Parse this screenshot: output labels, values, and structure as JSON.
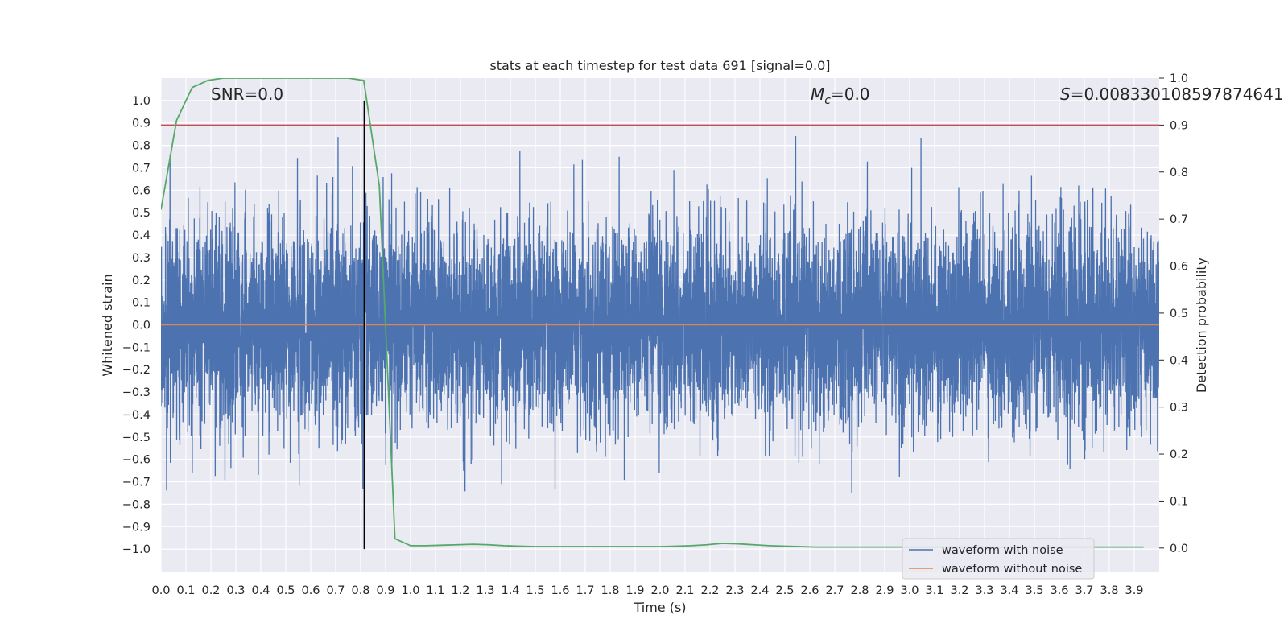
{
  "chart_data": {
    "type": "line",
    "title": "stats at each timestep for test data 691 [signal=0.0]",
    "xlabel": "Time (s)",
    "ylabel": "Whitened strain",
    "ylabel_right": "Detection probability",
    "xlim": [
      0.0,
      4.0
    ],
    "ylim": [
      -1.1,
      1.1
    ],
    "ylim_right": [
      -0.05,
      1.0
    ],
    "grid": true,
    "x_ticks": [
      "0.0",
      "0.1",
      "0.2",
      "0.3",
      "0.4",
      "0.5",
      "0.6",
      "0.7",
      "0.8",
      "0.9",
      "1.0",
      "1.1",
      "1.2",
      "1.3",
      "1.4",
      "1.5",
      "1.6",
      "1.7",
      "1.8",
      "1.9",
      "2.0",
      "2.1",
      "2.2",
      "2.3",
      "2.4",
      "2.5",
      "2.6",
      "2.7",
      "2.8",
      "2.9",
      "3.0",
      "3.1",
      "3.2",
      "3.3",
      "3.4",
      "3.5",
      "3.6",
      "3.7",
      "3.8",
      "3.9"
    ],
    "y_ticks": [
      "1.0",
      "0.9",
      "0.8",
      "0.7",
      "0.6",
      "0.5",
      "0.4",
      "0.3",
      "0.2",
      "0.1",
      "0.0",
      "−0.1",
      "−0.2",
      "−0.3",
      "−0.4",
      "−0.5",
      "−0.6",
      "−0.7",
      "−0.8",
      "−0.9",
      "−1.0"
    ],
    "y_ticks_right": [
      "1.0",
      "0.9",
      "0.8",
      "0.7",
      "0.6",
      "0.5",
      "0.4",
      "0.3",
      "0.2",
      "0.1",
      "0.0"
    ],
    "annotations": {
      "snr": "SNR=0.0",
      "mc_symbol": "M",
      "mc_sub": "c",
      "mc_value": "=0.0",
      "s_symbol": "S",
      "s_value": "=0.008330108597874641"
    },
    "threshold": {
      "value": 0.9,
      "axis": "right",
      "color": "#c44e52"
    },
    "event_marker": {
      "x": 0.815,
      "color": "#000000"
    },
    "series": [
      {
        "name": "waveform with noise",
        "color": "#4c72b0",
        "kind": "noise",
        "sample_rate": 2048,
        "amplitude_sigma": 0.22,
        "approx_range": [
          -1.0,
          1.0
        ]
      },
      {
        "name": "waveform without noise",
        "color": "#dd8452",
        "x": [
          0.0,
          4.0
        ],
        "y": [
          0.0,
          0.0
        ]
      },
      {
        "name": "",
        "color": "#55a868",
        "axis": "right",
        "x": [
          0.0,
          0.0625,
          0.125,
          0.1875,
          0.25,
          0.3125,
          0.375,
          0.4375,
          0.5,
          0.5625,
          0.625,
          0.6875,
          0.75,
          0.8125,
          0.875,
          0.9375,
          1.0,
          1.0625,
          1.125,
          1.1875,
          1.25,
          1.3125,
          1.375,
          1.4375,
          1.5,
          1.5625,
          1.625,
          1.6875,
          1.75,
          1.8125,
          1.875,
          1.9375,
          2.0,
          2.0625,
          2.125,
          2.1875,
          2.25,
          2.3125,
          2.375,
          2.4375,
          2.5,
          2.5625,
          2.625,
          2.6875,
          2.75,
          2.8125,
          2.875,
          2.9375,
          3.0,
          3.0625,
          3.125,
          3.1875,
          3.25,
          3.3125,
          3.375,
          3.4375,
          3.5,
          3.5625,
          3.625,
          3.6875,
          3.75,
          3.8125,
          3.875,
          3.9375
        ],
        "y": [
          0.72,
          0.91,
          0.98,
          0.995,
          1.0,
          1.0,
          1.0,
          1.0,
          1.0,
          1.0,
          1.0,
          1.0,
          1.0,
          0.995,
          0.77,
          0.02,
          0.005,
          0.005,
          0.006,
          0.007,
          0.008,
          0.007,
          0.005,
          0.004,
          0.003,
          0.003,
          0.003,
          0.003,
          0.003,
          0.003,
          0.003,
          0.003,
          0.003,
          0.004,
          0.005,
          0.007,
          0.01,
          0.009,
          0.007,
          0.005,
          0.004,
          0.003,
          0.002,
          0.002,
          0.002,
          0.002,
          0.002,
          0.002,
          0.002,
          0.002,
          0.002,
          0.002,
          0.002,
          0.002,
          0.002,
          0.002,
          0.002,
          0.002,
          0.002,
          0.002,
          0.002,
          0.002,
          0.002,
          0.002
        ]
      }
    ],
    "legend": {
      "placement": "lower-right",
      "entries": [
        "waveform with noise",
        "waveform without noise"
      ]
    }
  }
}
